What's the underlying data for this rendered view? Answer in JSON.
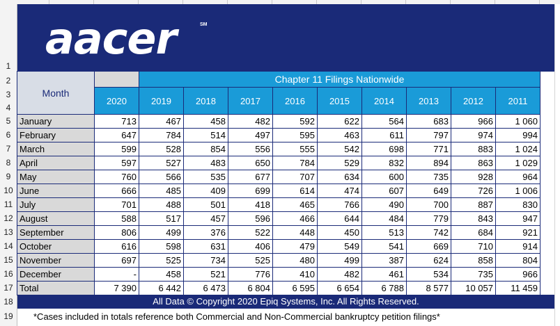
{
  "brand": {
    "logo": "aacer",
    "mark": "SM"
  },
  "row_numbers": [
    "1",
    "2",
    "3",
    "4",
    "5",
    "6",
    "7",
    "8",
    "9",
    "10",
    "11",
    "12",
    "13",
    "14",
    "15",
    "16",
    "17",
    "18",
    "19"
  ],
  "table": {
    "title": "Chapter 11 Filings Nationwide",
    "month_header": "Month",
    "years": [
      "2020",
      "2019",
      "2018",
      "2017",
      "2016",
      "2015",
      "2014",
      "2013",
      "2012",
      "2011"
    ],
    "rows": [
      {
        "month": "January",
        "values": [
          "713",
          "467",
          "458",
          "482",
          "592",
          "622",
          "564",
          "683",
          "966",
          "1 060"
        ]
      },
      {
        "month": "February",
        "values": [
          "647",
          "784",
          "514",
          "497",
          "595",
          "463",
          "611",
          "797",
          "974",
          "994"
        ]
      },
      {
        "month": "March",
        "values": [
          "599",
          "528",
          "854",
          "556",
          "555",
          "542",
          "698",
          "771",
          "883",
          "1 024"
        ]
      },
      {
        "month": "April",
        "values": [
          "597",
          "527",
          "483",
          "650",
          "784",
          "529",
          "832",
          "894",
          "863",
          "1 029"
        ]
      },
      {
        "month": "May",
        "values": [
          "760",
          "566",
          "535",
          "677",
          "707",
          "634",
          "600",
          "735",
          "928",
          "964"
        ]
      },
      {
        "month": "June",
        "values": [
          "666",
          "485",
          "409",
          "699",
          "614",
          "474",
          "607",
          "649",
          "726",
          "1 006"
        ]
      },
      {
        "month": "July",
        "values": [
          "701",
          "488",
          "501",
          "418",
          "465",
          "766",
          "490",
          "700",
          "887",
          "830"
        ]
      },
      {
        "month": "August",
        "values": [
          "588",
          "517",
          "457",
          "596",
          "466",
          "644",
          "484",
          "779",
          "843",
          "947"
        ]
      },
      {
        "month": "September",
        "values": [
          "806",
          "499",
          "376",
          "522",
          "448",
          "450",
          "513",
          "742",
          "684",
          "921"
        ]
      },
      {
        "month": "October",
        "values": [
          "616",
          "598",
          "631",
          "406",
          "479",
          "549",
          "541",
          "669",
          "710",
          "914"
        ]
      },
      {
        "month": "November",
        "values": [
          "697",
          "525",
          "734",
          "525",
          "480",
          "499",
          "387",
          "624",
          "858",
          "804"
        ]
      },
      {
        "month": "December",
        "values": [
          "-",
          "458",
          "521",
          "776",
          "410",
          "482",
          "461",
          "534",
          "735",
          "966"
        ]
      },
      {
        "month": "Total",
        "values": [
          "7 390",
          "6 442",
          "6 473",
          "6 804",
          "6 595",
          "6 654",
          "6 788",
          "8 577",
          "10 057",
          "11 459"
        ]
      }
    ]
  },
  "footer": {
    "copyright": "All Data © Copyright  2020 Epiq Systems, Inc.  All Rights Reserved.",
    "note": "*Cases included in totals reference both Commercial and Non-Commercial bankruptcy petition filings*"
  },
  "colors": {
    "navy": "#1a2a78",
    "header_blue": "#1a9bd8",
    "month_gray": "#d9d9d9"
  }
}
